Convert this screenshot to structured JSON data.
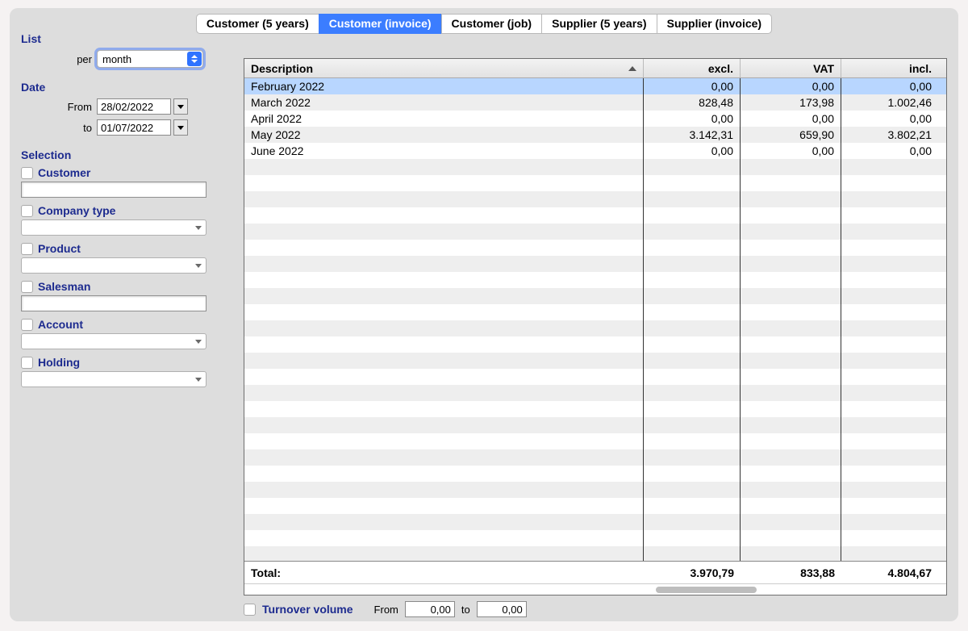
{
  "tabs": [
    "Customer (5 years)",
    "Customer (invoice)",
    "Customer (job)",
    "Supplier (5 years)",
    "Supplier (invoice)"
  ],
  "activeTab": 1,
  "sidebar": {
    "list_label": "List",
    "per_label": "per",
    "per_value": "month",
    "date_label": "Date",
    "from_label": "From",
    "to_label": "to",
    "from_value": "28/02/2022",
    "to_value": "01/07/2022",
    "selection_label": "Selection",
    "filters": [
      {
        "label": "Customer",
        "type": "text"
      },
      {
        "label": "Company type",
        "type": "combo"
      },
      {
        "label": "Product",
        "type": "combo"
      },
      {
        "label": "Salesman",
        "type": "text"
      },
      {
        "label": "Account",
        "type": "combo"
      },
      {
        "label": "Holding",
        "type": "combo"
      }
    ]
  },
  "table": {
    "columns": [
      "Description",
      "excl.",
      "VAT",
      "incl."
    ],
    "rows": [
      {
        "desc": "February 2022",
        "excl": "0,00",
        "vat": "0,00",
        "incl": "0,00",
        "selected": true
      },
      {
        "desc": "March 2022",
        "excl": "828,48",
        "vat": "173,98",
        "incl": "1.002,46",
        "selected": false
      },
      {
        "desc": "April 2022",
        "excl": "0,00",
        "vat": "0,00",
        "incl": "0,00",
        "selected": false
      },
      {
        "desc": "May 2022",
        "excl": "3.142,31",
        "vat": "659,90",
        "incl": "3.802,21",
        "selected": false
      },
      {
        "desc": "June 2022",
        "excl": "0,00",
        "vat": "0,00",
        "incl": "0,00",
        "selected": false
      }
    ],
    "blankRowCount": 25,
    "total_label": "Total:",
    "total": {
      "excl": "3.970,79",
      "vat": "833,88",
      "incl": "4.804,67"
    }
  },
  "bottom": {
    "turnover_label": "Turnover volume",
    "from_label": "From",
    "to_label": "to",
    "from_value": "0,00",
    "to_value": "0,00"
  }
}
